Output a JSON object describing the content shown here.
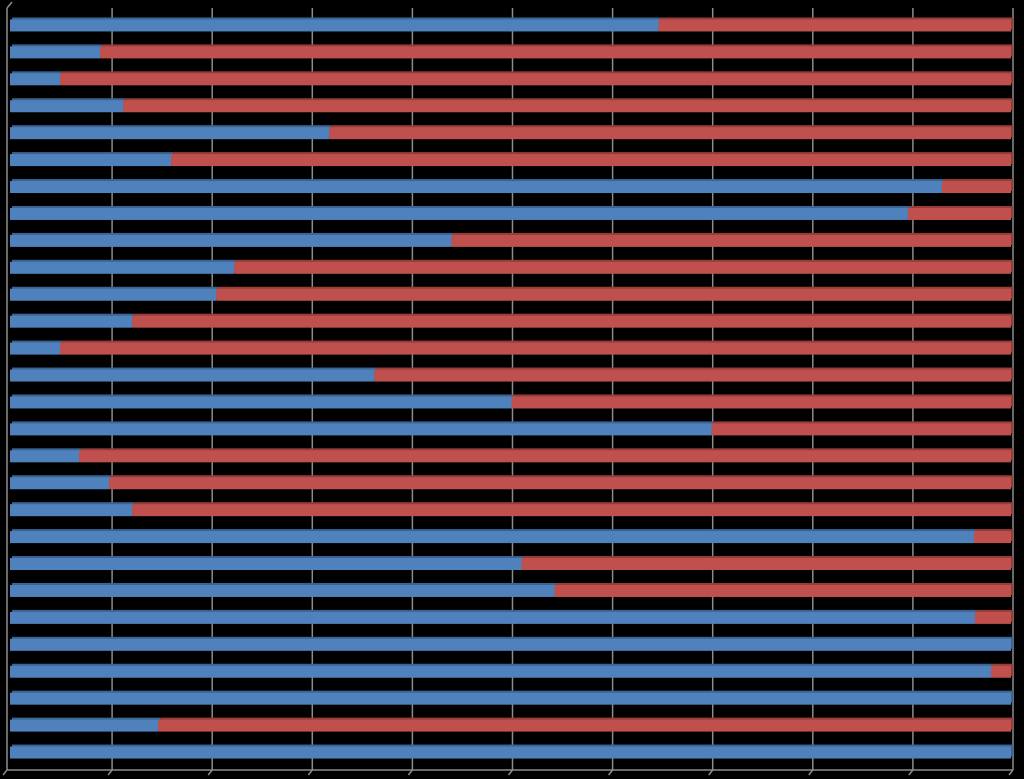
{
  "chart_data": {
    "type": "bar",
    "orientation": "horizontal",
    "stacked": "percent",
    "title": "",
    "xlabel": "",
    "ylabel": "",
    "xlim": [
      0,
      100
    ],
    "grid": true,
    "legend": "none",
    "background": "#000000",
    "gridline_color": "#8c8c8c",
    "series": [
      {
        "color": "#4f81bd",
        "values": [
          64.8,
          9.0,
          5.0,
          11.3,
          31.9,
          16.1,
          93.1,
          89.7,
          44.1,
          22.4,
          20.6,
          12.2,
          5.0,
          36.4,
          50.1,
          70.1,
          6.9,
          9.9,
          12.2,
          96.3,
          51.1,
          54.4,
          96.4,
          100,
          98.0,
          100,
          14.8,
          100
        ]
      },
      {
        "color": "#c0504d",
        "values": [
          35.2,
          91.0,
          95.0,
          88.7,
          68.1,
          83.9,
          6.9,
          10.3,
          55.9,
          77.6,
          79.4,
          87.8,
          95.0,
          63.6,
          49.9,
          29.9,
          93.1,
          90.1,
          87.8,
          3.7,
          48.9,
          45.6,
          3.6,
          0,
          2.0,
          0,
          85.2,
          0
        ]
      }
    ]
  }
}
